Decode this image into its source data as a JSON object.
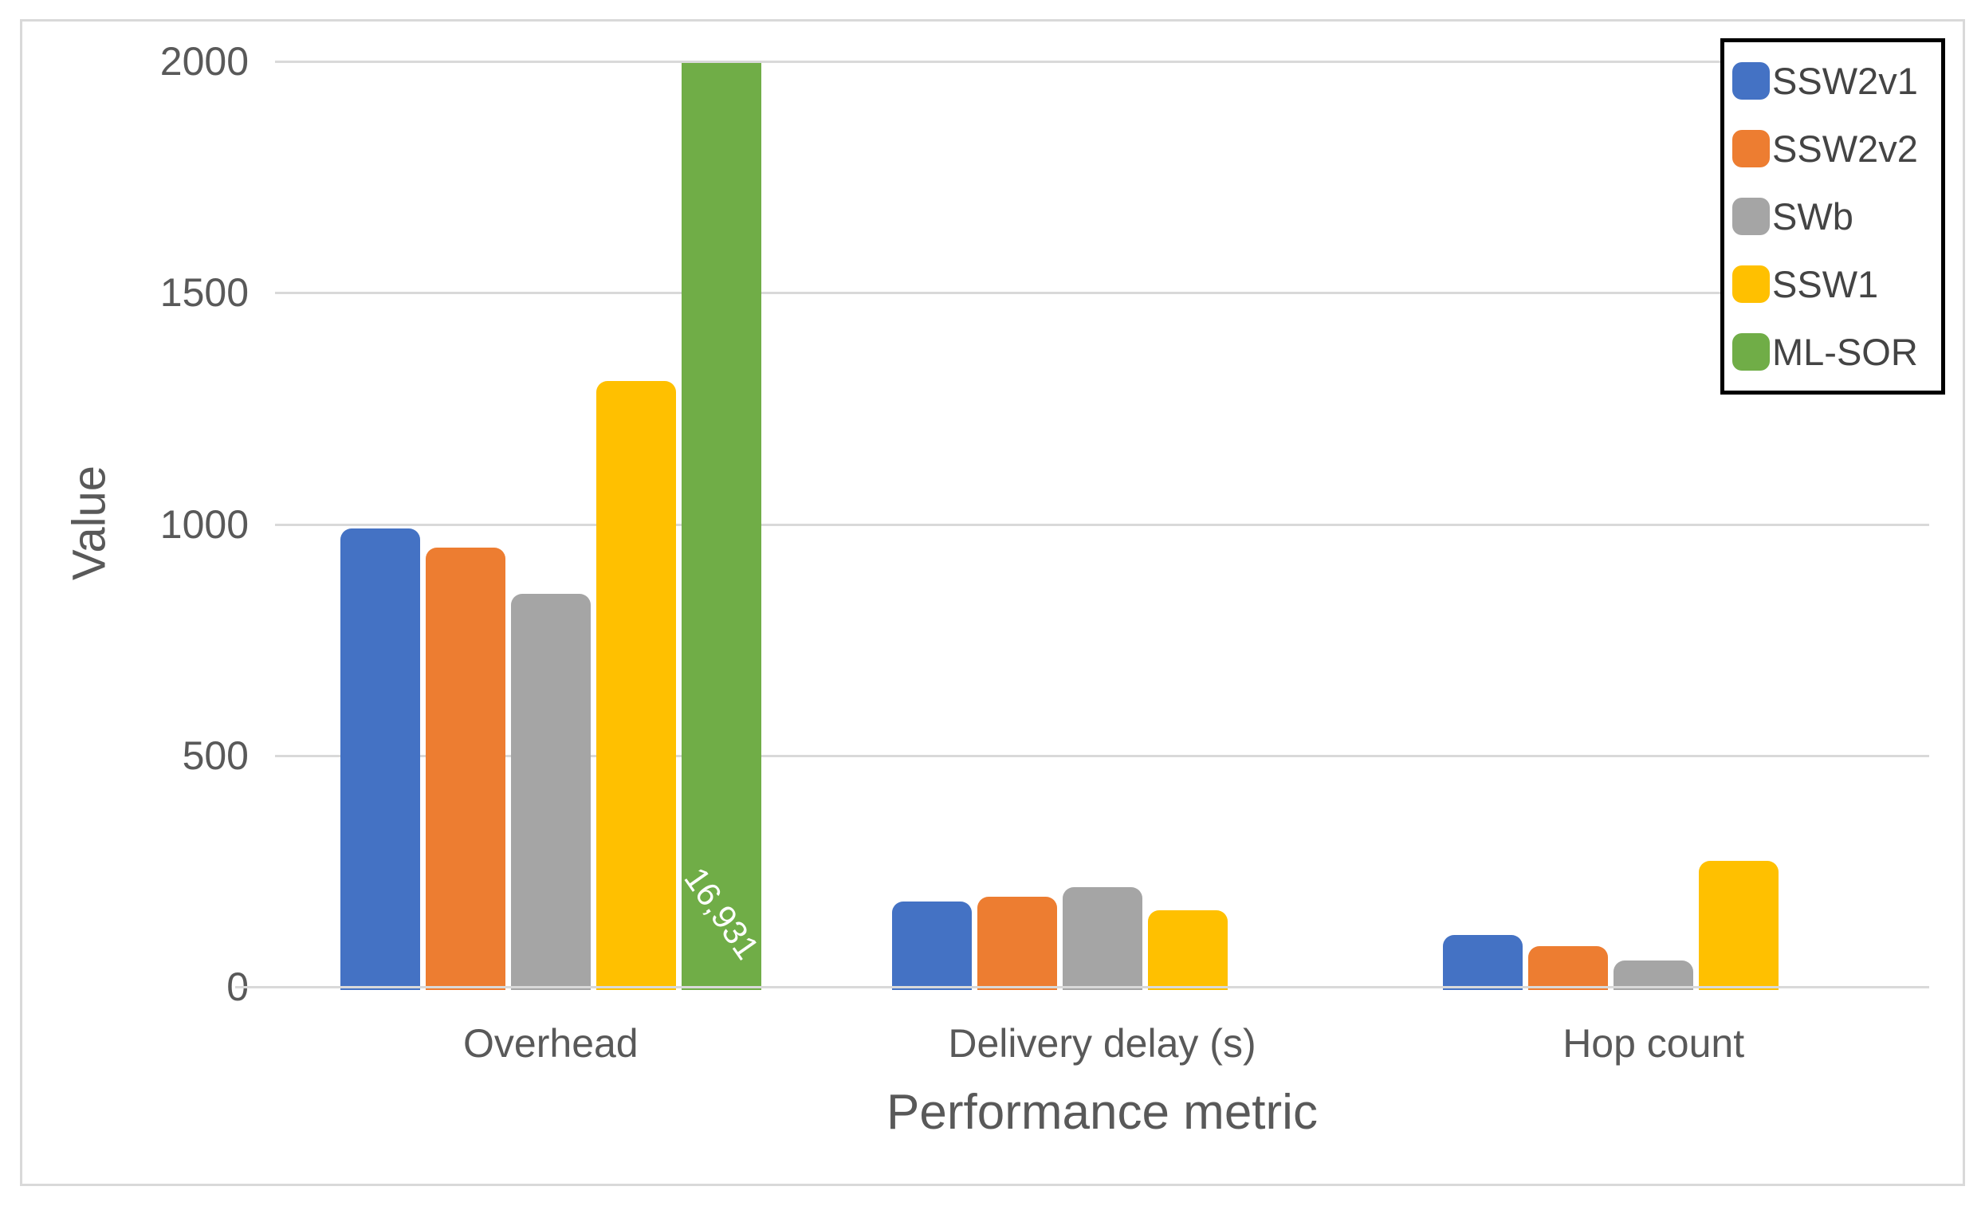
{
  "chart_data": {
    "type": "bar",
    "title": "",
    "xlabel": "Performance metric",
    "ylabel": "Value",
    "categories": [
      "Overhead",
      "Delivery delay (s)",
      "Hop count"
    ],
    "series": [
      {
        "name": "SSW2v1",
        "color": "#4472C4",
        "values": [
          990,
          185,
          112
        ]
      },
      {
        "name": "SSW2v2",
        "color": "#ED7D31",
        "values": [
          950,
          195,
          88
        ]
      },
      {
        "name": "SWb",
        "color": "#A5A5A5",
        "values": [
          850,
          215,
          57
        ]
      },
      {
        "name": "SSW1",
        "color": "#FFC000",
        "values": [
          1310,
          165,
          273
        ]
      },
      {
        "name": "ML-SOR",
        "color": "#70AD47",
        "values": [
          16931,
          null,
          null
        ]
      }
    ],
    "ylim": [
      0,
      2000
    ],
    "ytick_interval": 500,
    "ytick_labels": [
      "0",
      "500",
      "1000",
      "1500",
      "2000"
    ],
    "grid": true,
    "legend_position": "top-right",
    "legend_entries": [
      "SSW2v1",
      "SSW2v2",
      "SWb",
      "SSW1",
      "ML-SOR"
    ],
    "data_labels": [
      {
        "series_index": 4,
        "category_index": 0,
        "text": "16,931",
        "rotation_deg": 55,
        "color": "#FFFFFF"
      }
    ]
  },
  "colors": {
    "background": "#FFFFFF",
    "gridline": "#D9D9D9",
    "axis_line": "#D9D9D9",
    "chart_border": "#D9D9D9",
    "axis_text": "#595959",
    "legend_text": "#444444",
    "legend_border": "#000000",
    "datalabel_text": "#FFFFFF"
  }
}
